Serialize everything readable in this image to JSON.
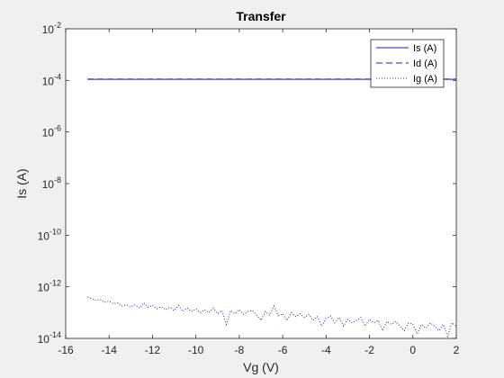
{
  "chart_data": {
    "type": "line",
    "title": "Transfer",
    "xlabel": "Vg (V)",
    "ylabel": "Is (A)",
    "xlim": [
      -16,
      2
    ],
    "ylim": [
      1e-14,
      0.01
    ],
    "yscale": "log",
    "grid": false,
    "legend_position": "top-right",
    "x_ticks": [
      -16,
      -14,
      -12,
      -10,
      -8,
      -6,
      -4,
      -2,
      0,
      2
    ],
    "x_tick_labels": [
      "-16",
      "-14",
      "-12",
      "-10",
      "-8",
      "-6",
      "-4",
      "-2",
      "0",
      "2"
    ],
    "y_ticks": [
      1e-14,
      1e-12,
      1e-10,
      1e-08,
      1e-06,
      0.0001,
      0.01
    ],
    "y_tick_labels": [
      {
        "base": "10",
        "exp": "-14"
      },
      {
        "base": "10",
        "exp": "-12"
      },
      {
        "base": "10",
        "exp": "-10"
      },
      {
        "base": "10",
        "exp": "-8"
      },
      {
        "base": "10",
        "exp": "-6"
      },
      {
        "base": "10",
        "exp": "-4"
      },
      {
        "base": "10",
        "exp": "-2"
      }
    ],
    "series": [
      {
        "name": "Is (A)",
        "style": "solid",
        "color": "#1f1fb4",
        "x": [
          -15,
          -14,
          -12,
          -10,
          -8,
          -6,
          -4,
          -2,
          0,
          2
        ],
        "y": [
          0.00011,
          0.00011,
          0.00011,
          0.00011,
          0.00011,
          0.00011,
          0.00011,
          0.00011,
          0.00011,
          0.00011
        ]
      },
      {
        "name": "Id (A)",
        "style": "dashed",
        "color": "#1f1fb4",
        "x": [
          -15,
          -14,
          -12,
          -10,
          -8,
          -6,
          -4,
          -2,
          0,
          2
        ],
        "y": [
          0.000112,
          0.000112,
          0.000112,
          0.000112,
          0.000112,
          0.000112,
          0.000112,
          0.000112,
          0.000112,
          0.000112
        ]
      },
      {
        "name": "Ig (A)",
        "style": "dotted",
        "color": "#1f1fb4",
        "x": [
          -15,
          -14.8,
          -14.6,
          -14.4,
          -14.2,
          -14,
          -13.8,
          -13.6,
          -13.4,
          -13.2,
          -13,
          -12.8,
          -12.6,
          -12.4,
          -12.2,
          -12,
          -11.8,
          -11.6,
          -11.4,
          -11.2,
          -11,
          -10.8,
          -10.6,
          -10.4,
          -10.2,
          -10,
          -9.8,
          -9.6,
          -9.4,
          -9.2,
          -9,
          -8.8,
          -8.6,
          -8.4,
          -8.2,
          -8,
          -7.8,
          -7.6,
          -7.4,
          -7.2,
          -7,
          -6.8,
          -6.6,
          -6.4,
          -6.2,
          -6,
          -5.8,
          -5.6,
          -5.4,
          -5.2,
          -5,
          -4.8,
          -4.6,
          -4.4,
          -4.2,
          -4,
          -3.8,
          -3.6,
          -3.4,
          -3.2,
          -3,
          -2.8,
          -2.6,
          -2.4,
          -2.2,
          -2,
          -1.8,
          -1.6,
          -1.4,
          -1.2,
          -1,
          -0.8,
          -0.6,
          -0.4,
          -0.2,
          0,
          0.2,
          0.4,
          0.6,
          0.8,
          1,
          1.2,
          1.4,
          1.6,
          1.8,
          2
        ],
        "y": [
          4e-13,
          3.5e-13,
          3e-13,
          3.2e-13,
          2.5e-13,
          2.8e-13,
          2.2e-13,
          2.4e-13,
          1.8e-13,
          2e-13,
          1.7e-13,
          2e-13,
          1.5e-13,
          2.4e-13,
          1.6e-13,
          1.9e-13,
          1.4e-13,
          1.7e-13,
          1.3e-13,
          1.6e-13,
          1.2e-13,
          1.9e-13,
          1.1e-13,
          1.5e-13,
          1.1e-13,
          1.4e-13,
          1e-13,
          1.3e-13,
          1e-13,
          1.5e-13,
          9e-14,
          1.2e-13,
          3.5e-14,
          1.2e-13,
          9e-14,
          1.3e-13,
          8.5e-14,
          1.1e-13,
          1.2e-13,
          8e-14,
          5e-14,
          1.1e-13,
          8e-14,
          1.8e-13,
          7.5e-14,
          9e-14,
          5e-14,
          1e-13,
          7e-14,
          9e-14,
          6.5e-14,
          8.5e-14,
          5e-14,
          7e-14,
          3e-14,
          6e-14,
          7.5e-14,
          4e-14,
          6.5e-14,
          3e-14,
          5.5e-14,
          4e-14,
          5e-14,
          6.5e-14,
          3e-14,
          5.5e-14,
          4e-14,
          5e-14,
          2e-14,
          4.5e-14,
          3.5e-14,
          4.5e-14,
          3e-14,
          2e-14,
          4e-14,
          3.5e-14,
          1.5e-14,
          3.5e-14,
          2.5e-14,
          4e-14,
          3e-14,
          2e-14,
          3.5e-14,
          1.2e-14,
          4e-14,
          3e-14
        ]
      }
    ]
  },
  "colors": {
    "figure_background": "#f0f0f0",
    "axes_background": "#ffffff",
    "line": "#1f1fb4",
    "axis": "#262626"
  }
}
